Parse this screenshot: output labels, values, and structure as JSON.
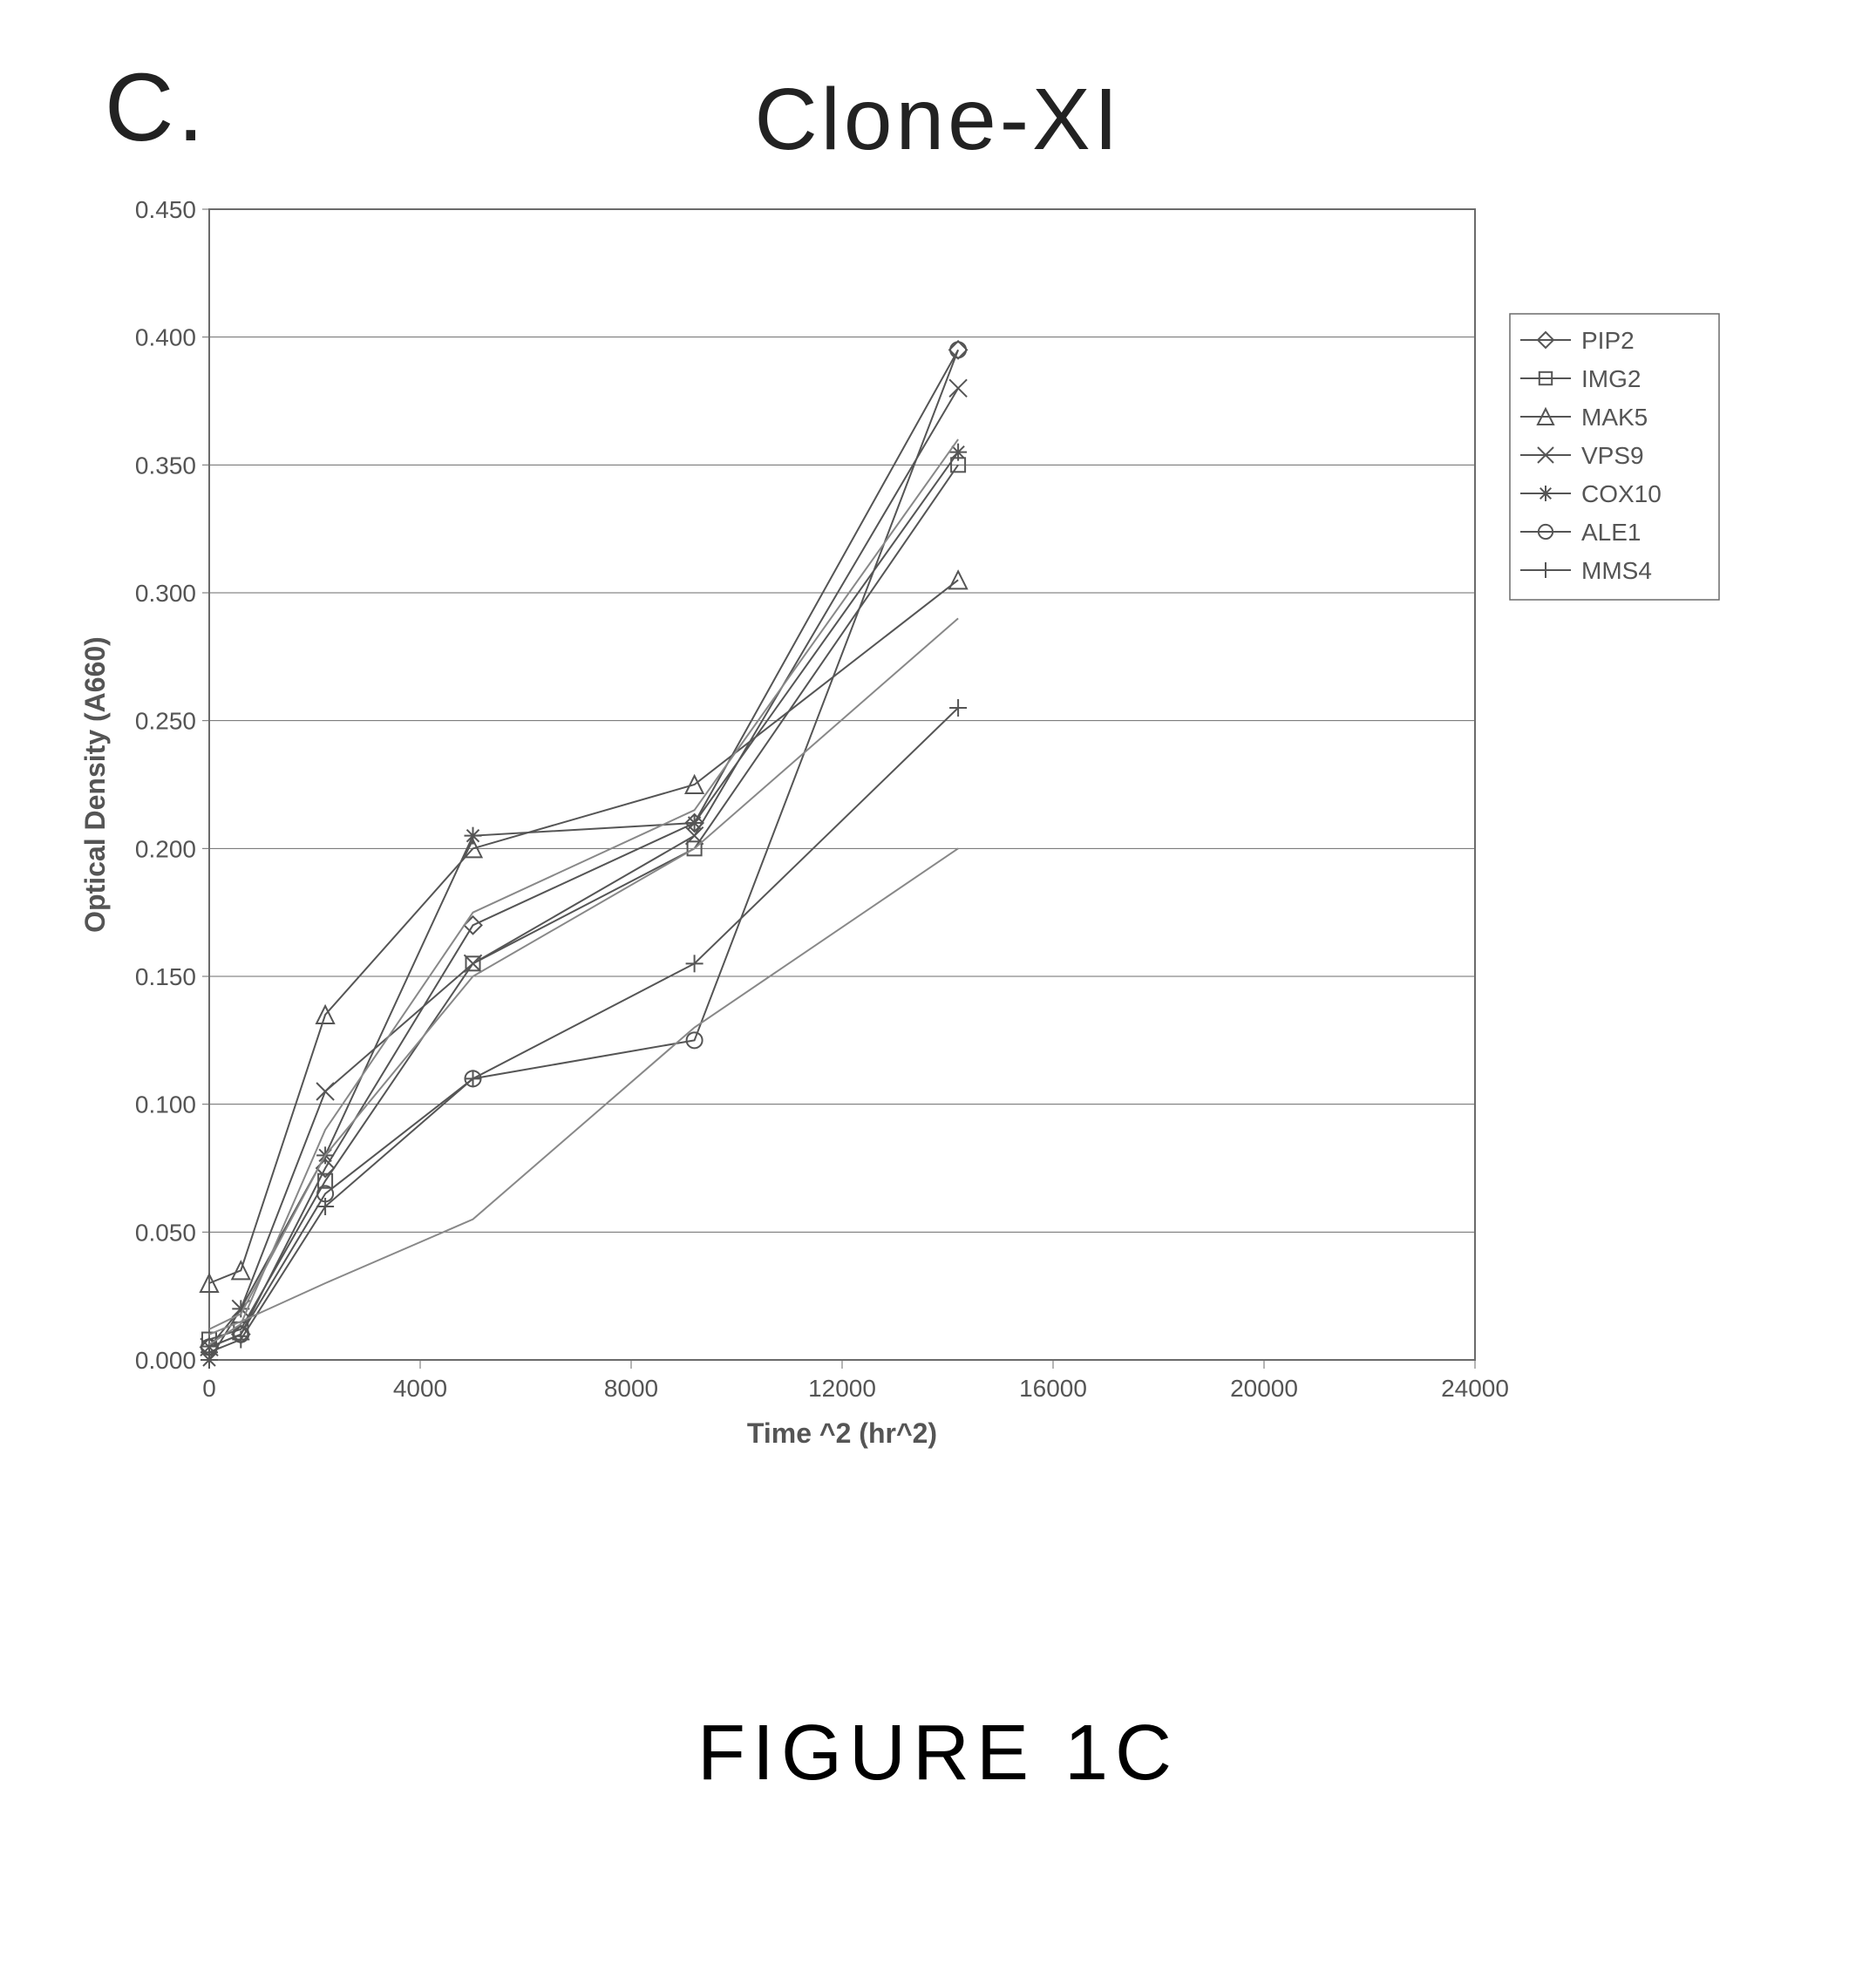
{
  "panel_letter": "C.",
  "title": "Clone-XI",
  "figure_caption": "FIGURE 1C",
  "chart": {
    "type": "line",
    "background_color": "#ffffff",
    "plot_border_color": "#6b6b6b",
    "grid_color": "#6b6b6b",
    "axis_text_color": "#555555",
    "title_fontsize": 100,
    "panel_letter_fontsize": 110,
    "caption_fontsize": 90,
    "tick_label_fontsize": 28,
    "axis_label_fontsize": 32,
    "legend_fontsize": 28,
    "legend_border_color": "#6b6b6b",
    "xlabel": "Time ^2 (hr^2)",
    "ylabel": "Optical Density (A660)",
    "xlim": [
      0,
      24000
    ],
    "ylim": [
      0.0,
      0.45
    ],
    "xtick_step": 4000,
    "ytick_step": 0.05,
    "ytick_decimals": 3,
    "line_width": 2,
    "marker_size": 10,
    "x_points": [
      0,
      600,
      2200,
      5000,
      9200,
      14200
    ],
    "series": [
      {
        "name": "PIP2",
        "marker": "diamond",
        "color": "#555555",
        "y": [
          0.005,
          0.01,
          0.075,
          0.17,
          0.21,
          0.395
        ]
      },
      {
        "name": "IMG2",
        "marker": "square",
        "color": "#555555",
        "y": [
          0.008,
          0.012,
          0.07,
          0.155,
          0.2,
          0.35
        ]
      },
      {
        "name": "MAK5",
        "marker": "triangle",
        "color": "#555555",
        "y": [
          0.03,
          0.035,
          0.135,
          0.2,
          0.225,
          0.305
        ]
      },
      {
        "name": "VPS9",
        "marker": "x",
        "color": "#555555",
        "y": [
          0.005,
          0.02,
          0.105,
          0.155,
          0.205,
          0.38
        ]
      },
      {
        "name": "COX10",
        "marker": "asterisk",
        "color": "#555555",
        "y": [
          0.0,
          0.02,
          0.08,
          0.205,
          0.21,
          0.355
        ]
      },
      {
        "name": "ALE1",
        "marker": "circle",
        "color": "#555555",
        "y": [
          0.005,
          0.01,
          0.065,
          0.11,
          0.125,
          0.395
        ]
      },
      {
        "name": "MMS4",
        "marker": "plus",
        "color": "#555555",
        "y": [
          0.003,
          0.008,
          0.06,
          0.11,
          0.155,
          0.255
        ]
      },
      {
        "name": "extra1",
        "marker": "none",
        "color": "#888888",
        "y": [
          0.01,
          0.015,
          0.03,
          0.055,
          0.13,
          0.2
        ]
      },
      {
        "name": "extra2",
        "marker": "none",
        "color": "#888888",
        "y": [
          0.012,
          0.018,
          0.08,
          0.15,
          0.2,
          0.29
        ]
      },
      {
        "name": "extra3",
        "marker": "none",
        "color": "#888888",
        "y": [
          0.006,
          0.014,
          0.09,
          0.175,
          0.215,
          0.36
        ]
      }
    ],
    "legend_items": [
      "PIP2",
      "IMG2",
      "MAK5",
      "VPS9",
      "COX10",
      "ALE1",
      "MMS4"
    ],
    "legend_markers": [
      "diamond",
      "square",
      "triangle",
      "x",
      "asterisk",
      "circle",
      "plus"
    ]
  }
}
